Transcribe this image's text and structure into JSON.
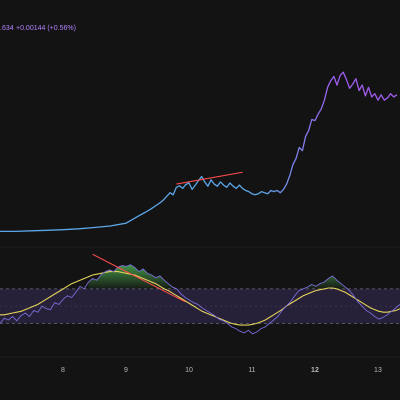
{
  "header": {
    "value_fragment": ".634",
    "change_text": "+0.00144 (+0.56%)",
    "color": "#b083ff"
  },
  "colors": {
    "background": "#131313",
    "pane_separator": "#1f1f1f",
    "price_line_start": "#5ba6e8",
    "price_line_end": "#a05cf0",
    "osc_line": "#7a6cd6",
    "osc_signal": "#e6d35a",
    "osc_band_fill": "#2a2340",
    "osc_band_border": "#6b6b7a",
    "divergence_line": "#ff4d4d",
    "overbought_fill_top": "#4caf50",
    "tick_text": "#b8b8b8"
  },
  "chart_data": [
    {
      "type": "line",
      "title": "",
      "x": [
        7.0,
        7.25,
        7.5,
        7.75,
        8.0,
        8.25,
        8.5,
        8.75,
        9.0,
        9.1,
        9.2,
        9.3,
        9.4,
        9.5,
        9.55,
        9.6,
        9.7,
        9.75,
        9.8,
        9.85,
        9.9,
        9.95,
        10.0,
        10.05,
        10.1,
        10.15,
        10.2,
        10.25,
        10.3,
        10.35,
        10.4,
        10.45,
        10.5,
        10.55,
        10.6,
        10.65,
        10.7,
        10.75,
        10.8,
        10.85,
        10.9,
        10.95,
        11.0,
        11.05,
        11.1,
        11.15,
        11.2,
        11.25,
        11.3,
        11.35,
        11.4,
        11.45,
        11.5,
        11.55,
        11.6,
        11.65,
        11.7,
        11.75,
        11.8,
        11.85,
        11.9,
        11.95,
        12.0,
        12.05,
        12.1,
        12.15,
        12.2,
        12.25,
        12.3,
        12.35,
        12.4,
        12.45,
        12.5,
        12.55,
        12.6,
        12.65,
        12.7,
        12.75,
        12.8,
        12.85,
        12.9,
        12.95,
        13.0,
        13.05,
        13.1,
        13.15,
        13.2,
        13.25,
        13.3
      ],
      "values": [
        100,
        100,
        100.3,
        100.5,
        100.8,
        101.2,
        101.8,
        102.5,
        103.8,
        105.5,
        107.2,
        108.8,
        110.5,
        112.5,
        113.5,
        114.8,
        118.0,
        117.0,
        120.5,
        121.2,
        120.0,
        121.8,
        122.5,
        119.5,
        121.5,
        123.5,
        125.5,
        123.0,
        121.0,
        124.0,
        122.0,
        121.0,
        123.0,
        121.5,
        120.5,
        122.5,
        121.0,
        120.0,
        121.5,
        120.0,
        119.0,
        118.5,
        117.5,
        117.0,
        117.5,
        118.5,
        118.0,
        117.5,
        119.0,
        118.5,
        119.0,
        118.0,
        119.5,
        122.0,
        126.0,
        131.0,
        134.0,
        139.0,
        137.5,
        144.0,
        147.0,
        152.0,
        151.5,
        154.5,
        157.0,
        161.0,
        167.0,
        170.0,
        172.0,
        168.0,
        172.5,
        174.0,
        170.5,
        166.5,
        168.5,
        171.0,
        165.5,
        168.0,
        163.0,
        167.0,
        162.5,
        164.0,
        161.0,
        163.5,
        161.0,
        162.0,
        164.0,
        162.5,
        163.5
      ],
      "ylim": [
        96,
        182
      ],
      "xlim": [
        7.0,
        13.35
      ],
      "divergence_line": {
        "x": [
          9.8,
          10.85
        ],
        "values": [
          122.0,
          127.5
        ]
      }
    },
    {
      "type": "line",
      "title": "",
      "series": [
        {
          "values": [
            30,
            36,
            34,
            38,
            33,
            39,
            42,
            38,
            45,
            43,
            50,
            47,
            46,
            54,
            52,
            58,
            62,
            60,
            66,
            73,
            70,
            78,
            82,
            80,
            86,
            90,
            92,
            90,
            95,
            97,
            96,
            98,
            95,
            90,
            93,
            88,
            86,
            83,
            85,
            80,
            76,
            72,
            70,
            64,
            60,
            57,
            54,
            52,
            48,
            45,
            42,
            39,
            35,
            33,
            30,
            26,
            24,
            21,
            19,
            22,
            18,
            20,
            24,
            26,
            30,
            34,
            38,
            45,
            50,
            55,
            62,
            68,
            70,
            72,
            75,
            73,
            76,
            78,
            82,
            85,
            80,
            76,
            72,
            68,
            62,
            55,
            50,
            45,
            42,
            38,
            35,
            37,
            40,
            44,
            48,
            52
          ]
        },
        {
          "values": [
            40,
            40,
            41,
            42,
            43,
            44,
            46,
            48,
            50,
            52,
            55,
            58,
            61,
            64,
            67,
            70,
            73,
            76,
            78,
            80,
            82,
            84,
            86,
            87,
            88,
            89,
            90,
            90,
            90,
            89,
            88,
            87,
            86,
            84,
            82,
            80,
            78,
            76,
            73,
            70,
            68,
            65,
            62,
            59,
            56,
            53,
            50,
            47,
            44,
            42,
            40,
            38,
            36,
            34,
            32,
            30,
            29,
            28,
            28,
            28,
            29,
            30,
            32,
            34,
            37,
            40,
            43,
            46,
            50,
            53,
            56,
            59,
            62,
            64,
            66,
            68,
            69,
            70,
            71,
            71,
            70,
            68,
            66,
            63,
            60,
            57,
            54,
            51,
            48,
            46,
            44,
            43,
            43,
            44,
            45,
            47
          ]
        }
      ],
      "band": {
        "upper": 70,
        "lower": 30
      },
      "ylim": [
        5,
        115
      ],
      "divergence_line": {
        "x_index": [
          22,
          44
        ],
        "values": [
          110,
          55
        ]
      }
    }
  ],
  "x_axis": {
    "ticks": [
      {
        "label": "8",
        "x": 8.0,
        "bold": false
      },
      {
        "label": "9",
        "x": 9.0,
        "bold": false
      },
      {
        "label": "10",
        "x": 10.0,
        "bold": false
      },
      {
        "label": "11",
        "x": 11.0,
        "bold": false
      },
      {
        "label": "12",
        "x": 12.0,
        "bold": true
      },
      {
        "label": "13",
        "x": 13.0,
        "bold": false
      }
    ]
  }
}
